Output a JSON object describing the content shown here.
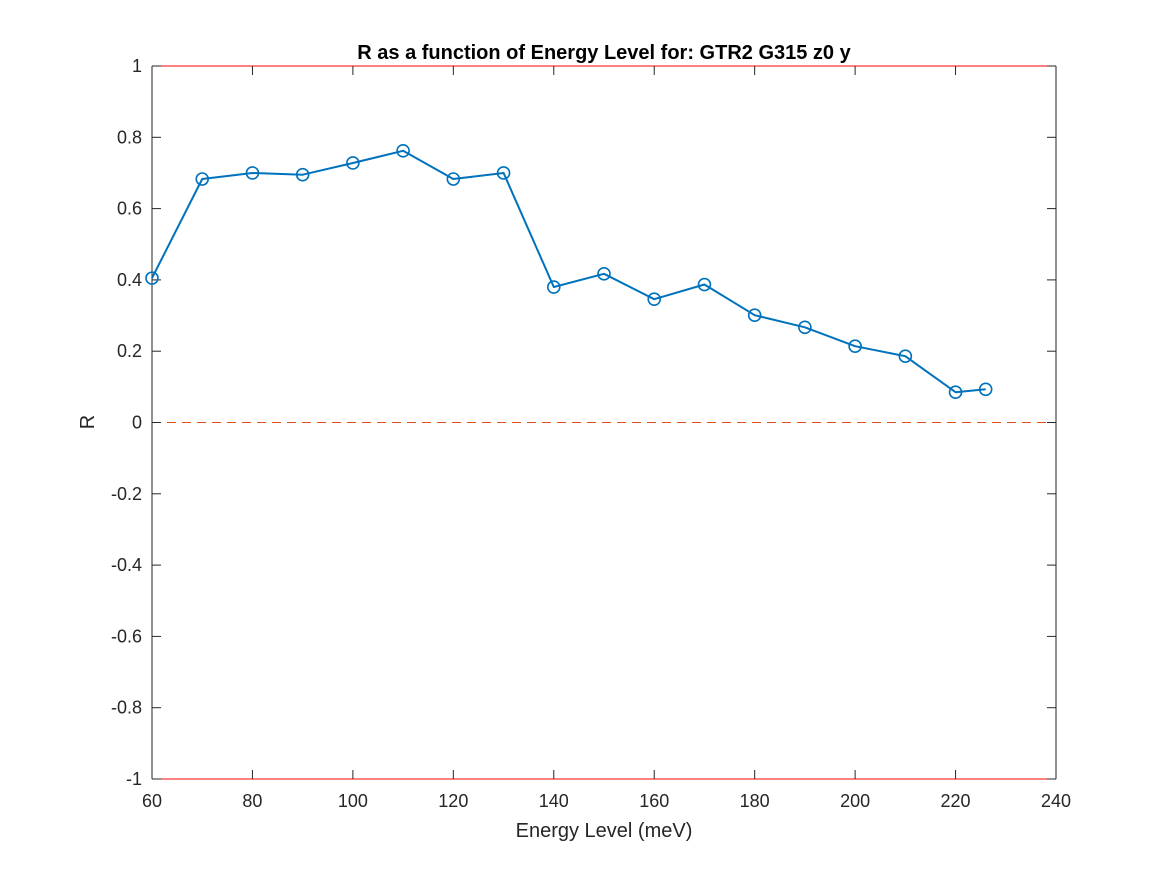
{
  "chart_data": {
    "type": "line",
    "title": "R as a function of Energy Level for: GTR2 G315 z0 y",
    "xlabel": "Energy Level (meV)",
    "ylabel": "R",
    "xlim": [
      60,
      240
    ],
    "ylim": [
      -1,
      1
    ],
    "xticks": [
      "60",
      "80",
      "100",
      "120",
      "140",
      "160",
      "180",
      "200",
      "220",
      "240"
    ],
    "yticks": [
      "-1",
      "-0.8",
      "-0.6",
      "-0.4",
      "-0.2",
      "0",
      "0.2",
      "0.4",
      "0.6",
      "0.8",
      "1"
    ],
    "grid": false,
    "marker": "circle",
    "series": [
      {
        "color": "#0072BD",
        "x": [
          60,
          70,
          80,
          90,
          100,
          110,
          120,
          130,
          140,
          150,
          160,
          170,
          180,
          190,
          200,
          210,
          220,
          226
        ],
        "y": [
          0.405,
          0.683,
          0.7,
          0.695,
          0.728,
          0.762,
          0.683,
          0.7,
          0.38,
          0.417,
          0.346,
          0.387,
          0.301,
          0.267,
          0.214,
          0.186,
          0.085,
          0.093
        ]
      }
    ],
    "reference_lines": [
      {
        "y": 0,
        "style": "dashed",
        "color": "#D95319"
      },
      {
        "y": 1,
        "style": "solid",
        "color": "#FF0000"
      },
      {
        "y": -1,
        "style": "solid",
        "color": "#FF0000"
      }
    ]
  }
}
